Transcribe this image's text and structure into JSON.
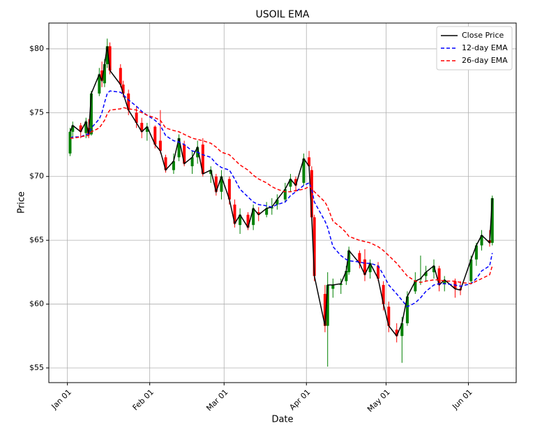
{
  "chart_data": {
    "type": "candlestick",
    "title": "USOIL EMA",
    "xlabel": "Date",
    "ylabel": "Price",
    "x": [
      "Jan 02",
      "Jan 03",
      "Jan 06",
      "Jan 08",
      "Jan 09",
      "Jan 10",
      "Jan 13",
      "Jan 14",
      "Jan 15",
      "Jan 16",
      "Jan 17",
      "Jan 21",
      "Jan 22",
      "Jan 24",
      "Jan 27",
      "Jan 29",
      "Jan 31",
      "Feb 03",
      "Feb 05",
      "Feb 07",
      "Feb 10",
      "Feb 12",
      "Feb 14",
      "Feb 17",
      "Feb 19",
      "Feb 21",
      "Feb 24",
      "Feb 26",
      "Feb 28",
      "Mar 03",
      "Mar 05",
      "Mar 07",
      "Mar 10",
      "Mar 12",
      "Mar 14",
      "Mar 17",
      "Mar 19",
      "Mar 21",
      "Mar 24",
      "Mar 26",
      "Mar 28",
      "Mar 31",
      "Apr 02",
      "Apr 03",
      "Apr 04",
      "Apr 08",
      "Apr 09",
      "Apr 11",
      "Apr 14",
      "Apr 16",
      "Apr 17",
      "Apr 21",
      "Apr 23",
      "Apr 25",
      "Apr 28",
      "Apr 30",
      "May 02",
      "May 05",
      "May 07",
      "May 09",
      "May 12",
      "May 14",
      "May 16",
      "May 19",
      "May 21",
      "May 23",
      "May 27",
      "May 29",
      "Jun 02",
      "Jun 04",
      "Jun 06",
      "Jun 09",
      "Jun 10"
    ],
    "open": [
      71.8,
      73.5,
      74.0,
      73.4,
      73.8,
      73.3,
      76.5,
      78.3,
      77.3,
      78.8,
      80.2,
      78.5,
      77.2,
      76.5,
      75.0,
      74.2,
      73.5,
      73.9,
      72.8,
      71.5,
      70.5,
      71.5,
      72.5,
      70.8,
      71.5,
      72.5,
      70.2,
      70.0,
      68.8,
      69.8,
      67.8,
      66.2,
      67.0,
      66.2,
      67.2,
      67.0,
      67.5,
      67.8,
      68.2,
      69.2,
      69.8,
      69.5,
      71.5,
      70.5,
      66.8,
      60.8,
      58.3,
      61.2,
      61.5,
      61.8,
      62.5,
      64.0,
      63.5,
      62.5,
      63.0,
      61.5,
      59.8,
      58.0,
      57.5,
      58.5,
      61.0,
      62.0,
      62.2,
      62.5,
      62.8,
      61.6,
      61.8,
      61.2,
      61.8,
      63.5,
      64.6,
      65.0,
      64.8
    ],
    "high": [
      73.8,
      74.3,
      74.2,
      74.6,
      74.5,
      76.7,
      78.5,
      79.0,
      79.2,
      80.8,
      80.5,
      78.8,
      77.5,
      76.8,
      75.5,
      74.6,
      74.2,
      74.0,
      75.2,
      71.7,
      71.8,
      73.3,
      72.8,
      72.0,
      72.8,
      73.0,
      70.8,
      70.2,
      70.5,
      70.0,
      68.2,
      67.5,
      67.2,
      67.8,
      67.6,
      68.0,
      68.3,
      68.6,
      69.5,
      70.2,
      70.0,
      71.8,
      72.0,
      70.8,
      67.0,
      61.5,
      62.5,
      62.0,
      62.0,
      63.0,
      64.5,
      64.2,
      64.3,
      63.5,
      63.3,
      61.8,
      60.2,
      58.5,
      59.0,
      61.0,
      62.5,
      63.8,
      63.0,
      63.5,
      63.0,
      62.2,
      62.0,
      61.8,
      63.8,
      64.8,
      65.8,
      65.8,
      68.5
    ],
    "low": [
      71.6,
      73.0,
      73.0,
      73.0,
      73.0,
      73.2,
      76.3,
      77.0,
      77.0,
      78.5,
      78.0,
      77.0,
      76.2,
      74.8,
      73.8,
      73.0,
      72.8,
      72.2,
      71.8,
      70.3,
      70.2,
      71.2,
      70.8,
      70.2,
      71.0,
      70.0,
      69.5,
      68.5,
      68.2,
      67.8,
      66.0,
      65.5,
      65.8,
      65.8,
      66.5,
      66.8,
      67.0,
      67.4,
      68.0,
      68.8,
      68.8,
      69.3,
      70.5,
      66.5,
      61.8,
      57.8,
      55.1,
      60.5,
      60.8,
      61.5,
      62.3,
      62.8,
      61.8,
      62.0,
      61.8,
      59.5,
      57.8,
      57.0,
      55.4,
      58.3,
      60.8,
      61.5,
      61.8,
      62.0,
      61.0,
      61.0,
      60.5,
      60.7,
      61.6,
      63.0,
      64.2,
      64.5,
      64.6
    ],
    "up_color": "green",
    "down_color": "red",
    "series": [
      {
        "name": "Close Price",
        "color": "#000000",
        "linestyle": "solid",
        "values": [
          73.5,
          74.0,
          73.5,
          74.3,
          73.3,
          76.5,
          78.0,
          77.5,
          78.8,
          80.2,
          78.3,
          77.2,
          76.5,
          75.2,
          74.2,
          73.5,
          73.9,
          72.5,
          72.0,
          70.5,
          71.2,
          73.0,
          71.0,
          71.5,
          72.3,
          70.2,
          70.5,
          68.8,
          70.0,
          68.2,
          66.3,
          67.0,
          66.0,
          67.5,
          67.0,
          67.5,
          67.6,
          68.2,
          69.0,
          69.8,
          69.3,
          71.4,
          70.8,
          66.8,
          62.2,
          58.3,
          61.5,
          61.5,
          61.6,
          62.6,
          64.2,
          63.2,
          62.3,
          63.2,
          62.0,
          60.0,
          58.3,
          57.5,
          58.5,
          60.6,
          61.8,
          62.0,
          62.5,
          63.0,
          61.5,
          61.9,
          61.2,
          61.1,
          63.5,
          64.6,
          65.4,
          64.8,
          68.3
        ]
      },
      {
        "name": "12-day EMA",
        "color": "#0000ff",
        "linestyle": "dashed",
        "values": [
          73.0,
          73.1,
          73.1,
          73.3,
          73.3,
          73.8,
          74.5,
          75.0,
          75.8,
          76.5,
          76.7,
          76.6,
          76.4,
          76.0,
          75.5,
          75.1,
          74.8,
          74.4,
          74.0,
          73.2,
          72.8,
          72.7,
          72.5,
          72.0,
          71.9,
          71.7,
          71.5,
          71.0,
          70.7,
          70.5,
          69.8,
          69.0,
          68.4,
          68.0,
          67.8,
          67.7,
          67.6,
          67.8,
          68.0,
          68.5,
          68.8,
          69.3,
          69.5,
          69.0,
          68.0,
          66.5,
          66.0,
          64.5,
          63.8,
          63.5,
          63.4,
          63.3,
          63.2,
          63.2,
          63.0,
          62.3,
          61.5,
          60.8,
          60.3,
          59.8,
          60.1,
          60.5,
          61.0,
          61.5,
          61.6,
          61.6,
          61.5,
          61.4,
          61.6,
          62.0,
          62.6,
          63.0,
          64.0
        ]
      },
      {
        "name": "26-day EMA",
        "color": "#ff0000",
        "linestyle": "dashed",
        "values": [
          73.0,
          73.0,
          73.1,
          73.2,
          73.2,
          73.5,
          73.8,
          74.1,
          74.4,
          74.9,
          75.2,
          75.3,
          75.4,
          75.3,
          75.2,
          75.0,
          74.8,
          74.6,
          74.4,
          73.8,
          73.6,
          73.5,
          73.3,
          73.0,
          72.9,
          72.8,
          72.6,
          72.3,
          71.9,
          71.7,
          71.3,
          70.9,
          70.5,
          70.1,
          69.8,
          69.5,
          69.2,
          69.0,
          68.8,
          68.8,
          68.9,
          69.0,
          69.2,
          69.1,
          68.8,
          68.0,
          67.6,
          66.5,
          66.0,
          65.6,
          65.3,
          65.0,
          64.9,
          64.8,
          64.5,
          64.2,
          63.8,
          63.2,
          62.7,
          62.2,
          61.8,
          61.7,
          61.8,
          61.9,
          61.9,
          61.8,
          61.8,
          61.7,
          61.6,
          61.8,
          62.0,
          62.3,
          63.0
        ]
      }
    ],
    "xlim": [
      "Dec 25",
      "Jun 19"
    ],
    "xticks": [
      "Jan 01",
      "Feb 01",
      "Mar 01",
      "Apr 01",
      "May 01",
      "Jun 01"
    ],
    "ylim": [
      53.85,
      82.02
    ],
    "yticks": [
      {
        "value": 55,
        "label": "$55"
      },
      {
        "value": 60,
        "label": "$60"
      },
      {
        "value": 65,
        "label": "$65"
      },
      {
        "value": 70,
        "label": "$70"
      },
      {
        "value": 75,
        "label": "$75"
      },
      {
        "value": 80,
        "label": "$80"
      }
    ],
    "grid": true,
    "legend": "upper right"
  }
}
